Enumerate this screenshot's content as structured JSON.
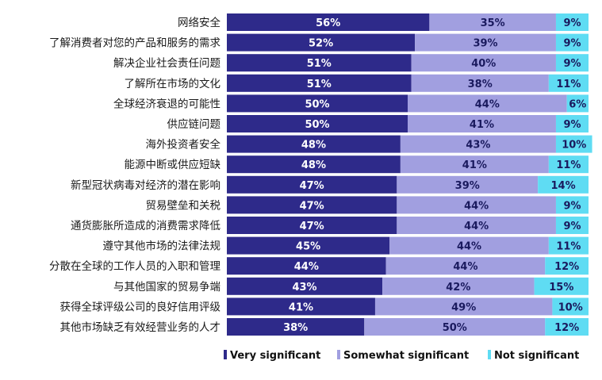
{
  "chart_data": {
    "type": "bar",
    "orientation": "horizontal",
    "stacked": true,
    "unit": "%",
    "categories": [
      "网络安全",
      "了解消费者对您的产品和服务的需求",
      "解决企业社会责任问题",
      "了解所在市场的文化",
      "全球经济衰退的可能性",
      "供应链问题",
      "海外投资者安全",
      "能源中断或供应短缺",
      "新型冠状病毒对经济的潜在影响",
      "贸易壁垒和关税",
      "通货膨胀所造成的消费需求降低",
      "遵守其他市场的法律法规",
      "分散在全球的工作人员的入职和管理",
      "与其他国家的贸易争端",
      "获得全球评级公司的良好信用评级",
      "其他市场缺乏有效经营业务的人才"
    ],
    "series": [
      {
        "name": "Very significant",
        "color": "#2e2a8a",
        "label_color": "#ffffff",
        "values": [
          56,
          52,
          51,
          51,
          50,
          50,
          48,
          48,
          47,
          47,
          47,
          45,
          44,
          43,
          41,
          38
        ]
      },
      {
        "name": "Somewhat significant",
        "color": "#a19fe0",
        "label_color": "#1a1a5e",
        "values": [
          35,
          39,
          40,
          38,
          44,
          41,
          43,
          41,
          39,
          44,
          44,
          44,
          44,
          42,
          49,
          50
        ]
      },
      {
        "name": "Not significant",
        "color": "#5fdcf3",
        "label_color": "#1a1a5e",
        "values": [
          9,
          9,
          9,
          11,
          6,
          9,
          10,
          11,
          14,
          9,
          9,
          11,
          12,
          15,
          10,
          12
        ]
      }
    ],
    "xlim": [
      0,
      100
    ],
    "grid": false,
    "legend": "bottom-right"
  }
}
